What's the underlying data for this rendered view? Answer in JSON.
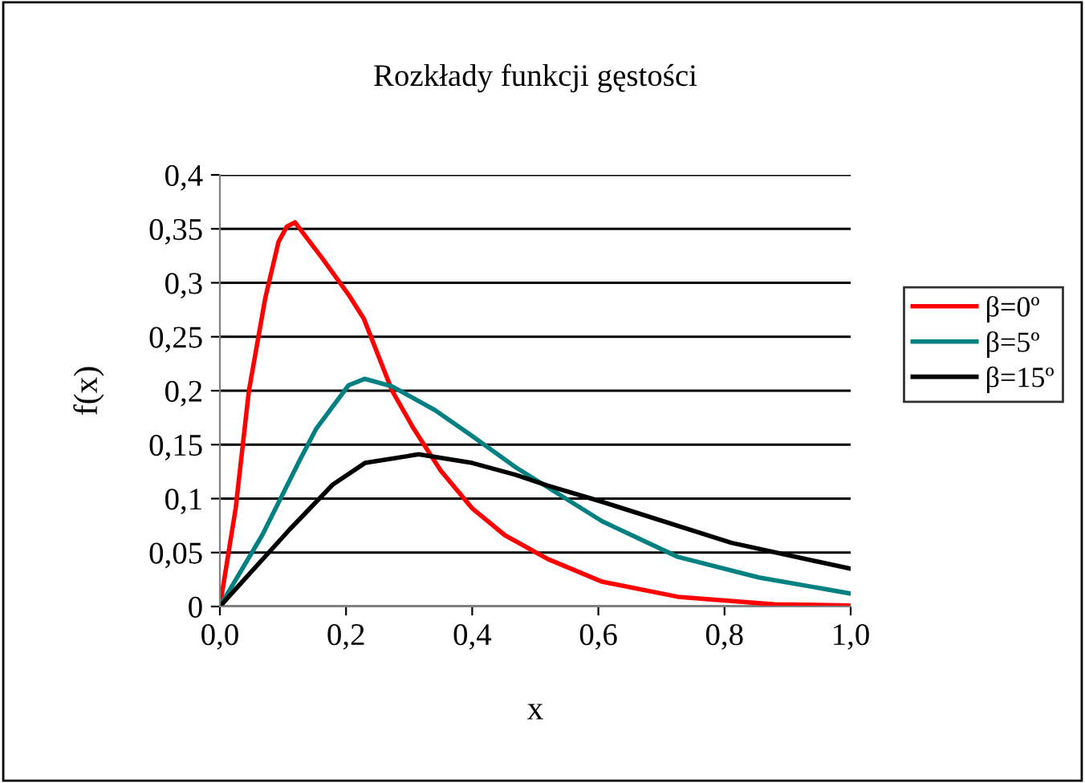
{
  "chart_data": {
    "type": "line",
    "title": "Rozkłady funkcji gęstości",
    "xlabel": "x",
    "ylabel": "f(x)",
    "xlim": [
      0,
      1
    ],
    "ylim": [
      0,
      0.4
    ],
    "xticks": [
      {
        "value": 0,
        "label": "0,0"
      },
      {
        "value": 0.2,
        "label": "0,2"
      },
      {
        "value": 0.4,
        "label": "0,4"
      },
      {
        "value": 0.6,
        "label": "0,6"
      },
      {
        "value": 0.8,
        "label": "0,8"
      },
      {
        "value": 1,
        "label": "1,0"
      }
    ],
    "yticks": [
      0,
      {
        "value": 0.05,
        "label": "0,05"
      },
      {
        "value": 0.1,
        "label": "0,1"
      },
      {
        "value": 0.15,
        "label": "0,15"
      },
      {
        "value": 0.2,
        "label": "0,2"
      },
      {
        "value": 0.25,
        "label": "0,25"
      },
      {
        "value": 0.3,
        "label": "0,3"
      },
      {
        "value": 0.35,
        "label": "0,35"
      },
      {
        "value": 0.4,
        "label": "0,4"
      }
    ],
    "grid": "y",
    "legend": "right",
    "marker": "none",
    "line_style": "solid",
    "series": [
      {
        "name": "β=0º",
        "color": "#ff0000",
        "x": [
          0,
          0.025,
          0.046,
          0.072,
          0.093,
          0.106,
          0.119,
          0.162,
          0.204,
          0.228,
          0.273,
          0.307,
          0.35,
          0.4,
          0.452,
          0.52,
          0.606,
          0.726,
          0.879,
          1.0
        ],
        "values": [
          0,
          0.091,
          0.2,
          0.286,
          0.338,
          0.352,
          0.356,
          0.323,
          0.289,
          0.267,
          0.2,
          0.165,
          0.126,
          0.091,
          0.066,
          0.044,
          0.023,
          0.009,
          0.002,
          0.001
        ]
      },
      {
        "name": "β=5º",
        "color": "#008080",
        "x": [
          0,
          0.067,
          0.127,
          0.153,
          0.204,
          0.23,
          0.273,
          0.341,
          0.4,
          0.469,
          0.606,
          0.726,
          0.854,
          1.0
        ],
        "values": [
          0,
          0.066,
          0.136,
          0.165,
          0.205,
          0.211,
          0.204,
          0.182,
          0.158,
          0.129,
          0.079,
          0.046,
          0.027,
          0.012
        ]
      },
      {
        "name": "β=15º",
        "color": "#000000",
        "x": [
          0,
          0.11,
          0.179,
          0.23,
          0.315,
          0.4,
          0.469,
          0.52,
          0.606,
          0.811,
          1.0
        ],
        "values": [
          0,
          0.071,
          0.113,
          0.133,
          0.141,
          0.133,
          0.122,
          0.112,
          0.097,
          0.059,
          0.035
        ]
      }
    ]
  }
}
